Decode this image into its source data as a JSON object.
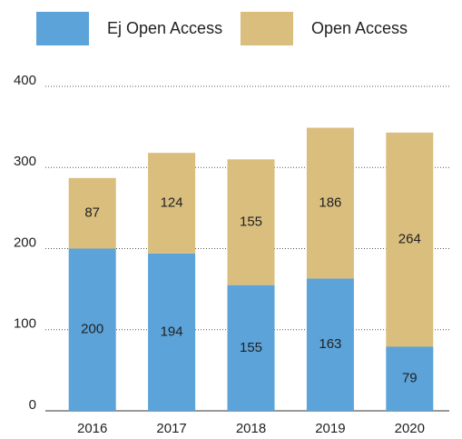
{
  "chart_data": {
    "type": "stacked_bar",
    "categories": [
      "2016",
      "2017",
      "2018",
      "2019",
      "2020"
    ],
    "series": [
      {
        "name": "Ej Open Access",
        "color": "#5ba3d9",
        "values": [
          200,
          194,
          155,
          163,
          79
        ]
      },
      {
        "name": "Open Access",
        "color": "#d9be7e",
        "values": [
          87,
          124,
          155,
          186,
          264
        ]
      }
    ],
    "ylim": [
      0,
      400
    ],
    "yticks": [
      0,
      100,
      200,
      300,
      400
    ],
    "grid": true,
    "legend": "top"
  }
}
